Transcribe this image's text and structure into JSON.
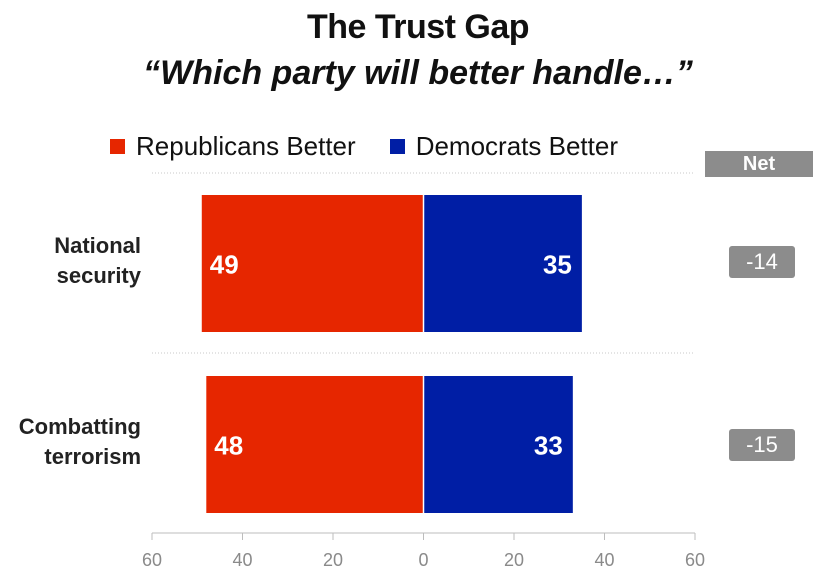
{
  "chart_data": {
    "type": "bar",
    "title": "The Trust Gap",
    "subtitle": "“Which party will better handle…”",
    "categories": [
      "National security",
      "Combatting terrorism"
    ],
    "category_lines": [
      [
        "National",
        "security"
      ],
      [
        "Combatting",
        "terrorism"
      ]
    ],
    "series": [
      {
        "name": "Republicans Better",
        "values": [
          49,
          48
        ],
        "color": "#e62600",
        "direction": "left"
      },
      {
        "name": "Democrats Better",
        "values": [
          35,
          33
        ],
        "color": "#001ea5",
        "direction": "right"
      }
    ],
    "net_label": "Net",
    "net_values": [
      "-14",
      "-15"
    ],
    "xlim": [
      -60,
      60
    ],
    "x_ticks": [
      -60,
      -40,
      -20,
      0,
      20,
      40,
      60
    ],
    "x_tick_labels": [
      "60",
      "40",
      "20",
      "0",
      "20",
      "40",
      "60"
    ],
    "legend_position": "top",
    "grid": false
  }
}
